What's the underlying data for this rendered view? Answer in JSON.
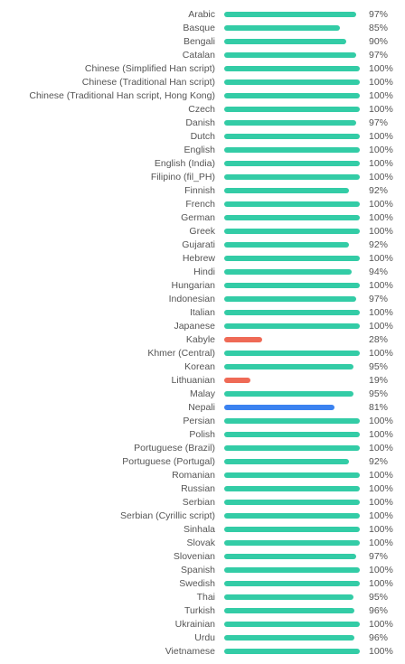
{
  "colors": {
    "complete": "#33cca6",
    "low": "#ef6a56",
    "highlight": "#3b82f0"
  },
  "chart_data": {
    "type": "bar",
    "orientation": "horizontal",
    "xlim": [
      0,
      100
    ],
    "grid": false,
    "categories": [
      "Arabic",
      "Basque",
      "Bengali",
      "Catalan",
      "Chinese (Simplified Han script)",
      "Chinese (Traditional Han script)",
      "Chinese (Traditional Han script, Hong Kong)",
      "Czech",
      "Danish",
      "Dutch",
      "English",
      "English (India)",
      "Filipino (fil_PH)",
      "Finnish",
      "French",
      "German",
      "Greek",
      "Gujarati",
      "Hebrew",
      "Hindi",
      "Hungarian",
      "Indonesian",
      "Italian",
      "Japanese",
      "Kabyle",
      "Khmer (Central)",
      "Korean",
      "Lithuanian",
      "Malay",
      "Nepali",
      "Persian",
      "Polish",
      "Portuguese (Brazil)",
      "Portuguese (Portugal)",
      "Romanian",
      "Russian",
      "Serbian",
      "Serbian (Cyrillic script)",
      "Sinhala",
      "Slovak",
      "Slovenian",
      "Spanish",
      "Swedish",
      "Thai",
      "Turkish",
      "Ukrainian",
      "Urdu",
      "Vietnamese"
    ],
    "values": [
      97,
      85,
      90,
      97,
      100,
      100,
      100,
      100,
      97,
      100,
      100,
      100,
      100,
      92,
      100,
      100,
      100,
      92,
      100,
      94,
      100,
      97,
      100,
      100,
      28,
      100,
      95,
      19,
      95,
      81,
      100,
      100,
      100,
      92,
      100,
      100,
      100,
      100,
      100,
      100,
      97,
      100,
      100,
      95,
      96,
      100,
      96,
      100
    ],
    "value_labels": [
      "97%",
      "85%",
      "90%",
      "97%",
      "100%",
      "100%",
      "100%",
      "100%",
      "97%",
      "100%",
      "100%",
      "100%",
      "100%",
      "92%",
      "100%",
      "100%",
      "100%",
      "92%",
      "100%",
      "94%",
      "100%",
      "97%",
      "100%",
      "100%",
      "28%",
      "100%",
      "95%",
      "19%",
      "95%",
      "81%",
      "100%",
      "100%",
      "100%",
      "92%",
      "100%",
      "100%",
      "100%",
      "100%",
      "100%",
      "100%",
      "97%",
      "100%",
      "100%",
      "95%",
      "96%",
      "100%",
      "96%",
      "100%"
    ],
    "bar_colors": [
      "complete",
      "complete",
      "complete",
      "complete",
      "complete",
      "complete",
      "complete",
      "complete",
      "complete",
      "complete",
      "complete",
      "complete",
      "complete",
      "complete",
      "complete",
      "complete",
      "complete",
      "complete",
      "complete",
      "complete",
      "complete",
      "complete",
      "complete",
      "complete",
      "low",
      "complete",
      "complete",
      "low",
      "complete",
      "highlight",
      "complete",
      "complete",
      "complete",
      "complete",
      "complete",
      "complete",
      "complete",
      "complete",
      "complete",
      "complete",
      "complete",
      "complete",
      "complete",
      "complete",
      "complete",
      "complete",
      "complete",
      "complete"
    ]
  }
}
